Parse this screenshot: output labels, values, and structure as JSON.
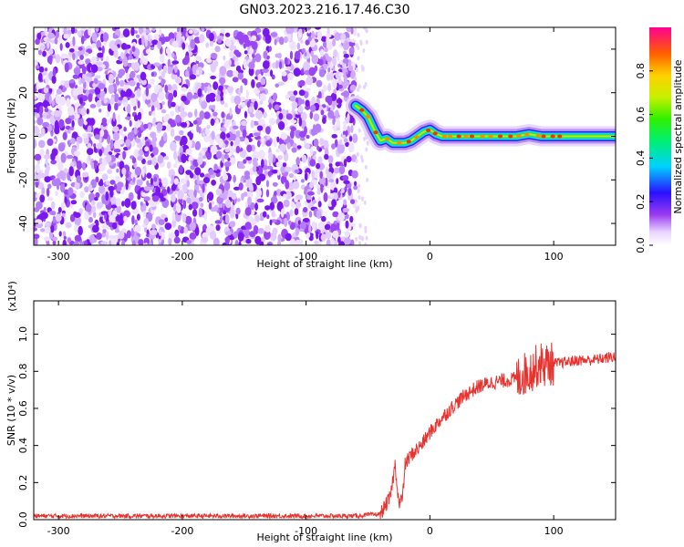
{
  "figure": {
    "title": "GN03.2023.216.17.46.C30"
  },
  "chart_data": [
    {
      "type": "heatmap",
      "title": "",
      "xlabel": "Height of straight line (km)",
      "ylabel": "Frequency (Hz)",
      "xlim": [
        -320,
        150
      ],
      "ylim": [
        -50,
        50
      ],
      "xticks": [
        -300,
        -200,
        -100,
        0,
        100
      ],
      "yticks": [
        -40,
        -20,
        0,
        20,
        40
      ],
      "colorbar": {
        "label": "Normalized spectral amplitude",
        "range": [
          0.0,
          1.0
        ],
        "ticks": [
          0.0,
          0.2,
          0.4,
          0.6,
          0.8
        ]
      },
      "signal_trace": {
        "x": [
          -60,
          -55,
          -50,
          -45,
          -40,
          -35,
          -30,
          -25,
          -20,
          -15,
          -10,
          -5,
          0,
          5,
          10,
          20,
          30,
          40,
          50,
          60,
          70,
          80,
          90,
          100,
          110,
          120,
          130,
          140,
          150
        ],
        "freq": [
          14,
          12,
          9,
          3,
          -2,
          -1,
          -3,
          -3,
          -3,
          -2,
          0,
          2,
          3,
          1,
          0,
          0,
          0,
          0,
          0,
          0,
          0,
          1,
          0,
          0,
          0,
          0,
          0,
          0,
          0
        ]
      },
      "noise_region_x": [
        -320,
        -60
      ],
      "grid": false
    },
    {
      "type": "line",
      "title": "",
      "xlabel": "Height of straight line (km)",
      "ylabel": "SNR (10 * v/v)",
      "yscale_label": "(x10⁴)",
      "xlim": [
        -320,
        150
      ],
      "ylim": [
        0,
        1.18
      ],
      "xticks": [
        -300,
        -200,
        -100,
        0,
        100
      ],
      "yticks": [
        "0.0",
        "0.2",
        "0.4",
        "0.6",
        "0.8",
        "1.0"
      ],
      "series": [
        {
          "color": "#e8322e",
          "x": [
            -320,
            -250,
            -150,
            -60,
            -40,
            -32,
            -28,
            -25,
            -22,
            -20,
            -15,
            -10,
            -5,
            0,
            10,
            20,
            30,
            40,
            50,
            60,
            70,
            75,
            80,
            85,
            88,
            90,
            92,
            95,
            100,
            110,
            120,
            130,
            140,
            150
          ],
          "y": [
            0.02,
            0.02,
            0.02,
            0.02,
            0.03,
            0.12,
            0.3,
            0.08,
            0.12,
            0.3,
            0.35,
            0.38,
            0.42,
            0.47,
            0.55,
            0.62,
            0.68,
            0.72,
            0.74,
            0.75,
            0.76,
            0.78,
            0.8,
            0.82,
            0.84,
            0.84,
            0.83,
            0.84,
            0.84,
            0.85,
            0.86,
            0.86,
            0.87,
            0.88
          ]
        }
      ],
      "grid": false
    }
  ]
}
